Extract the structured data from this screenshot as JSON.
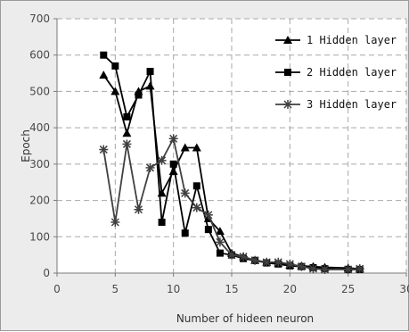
{
  "chart_data": {
    "type": "line",
    "title": "",
    "xlabel": "Number of hideen neuron",
    "ylabel": "Epoch",
    "xlim": [
      0,
      30
    ],
    "ylim": [
      0,
      700
    ],
    "xticks": [
      0,
      5,
      10,
      15,
      20,
      25,
      30
    ],
    "yticks": [
      0,
      100,
      200,
      300,
      400,
      500,
      600,
      700
    ],
    "grid": true,
    "legend": "top-right",
    "series": [
      {
        "name": "1 Hidden layer",
        "marker": "triangle",
        "color": "#000000",
        "x": [
          4,
          5,
          6,
          7,
          8,
          9,
          10,
          11,
          12,
          13,
          14,
          15,
          16,
          17,
          18,
          19,
          20,
          21,
          22,
          23,
          25,
          26
        ],
        "y": [
          545,
          500,
          385,
          500,
          515,
          220,
          280,
          345,
          345,
          150,
          115,
          55,
          45,
          35,
          30,
          28,
          22,
          20,
          18,
          16,
          14,
          12
        ]
      },
      {
        "name": "2 Hidden layer",
        "marker": "square",
        "color": "#000000",
        "x": [
          4,
          5,
          6,
          7,
          8,
          9,
          10,
          11,
          12,
          13,
          14,
          15,
          16,
          17,
          18,
          19,
          20,
          21,
          22,
          23,
          25,
          26
        ],
        "y": [
          600,
          570,
          430,
          490,
          555,
          140,
          300,
          110,
          240,
          120,
          55,
          50,
          40,
          35,
          28,
          25,
          20,
          18,
          15,
          12,
          10,
          10
        ]
      },
      {
        "name": "3 Hidden layer",
        "marker": "star",
        "color": "#404040",
        "x": [
          4,
          5,
          6,
          7,
          8,
          9,
          10,
          11,
          12,
          13,
          14,
          15,
          16,
          17,
          18,
          19,
          20,
          21,
          22,
          23,
          25,
          26
        ],
        "y": [
          340,
          140,
          355,
          175,
          290,
          310,
          370,
          220,
          180,
          160,
          85,
          50,
          45,
          35,
          30,
          30,
          25,
          18,
          12,
          10,
          10,
          12
        ]
      }
    ]
  }
}
